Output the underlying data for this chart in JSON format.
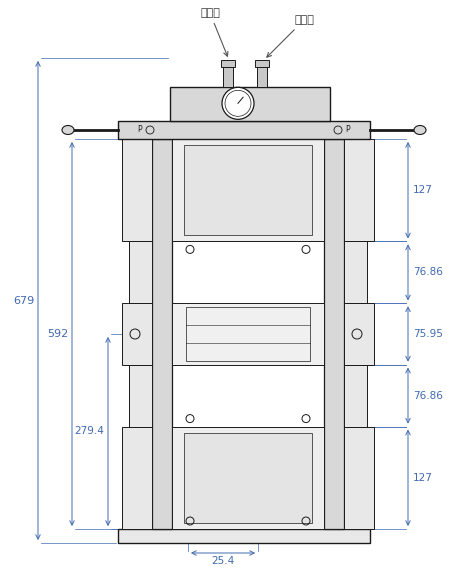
{
  "bg_color": "#ffffff",
  "line_color": "#1a1a1a",
  "dim_color": "#4169B0",
  "label_color": "#333333",
  "fill_light": "#e8e8e8",
  "fill_mid": "#d8d8d8",
  "fill_dark": "#c8c8c8",
  "label_chu": "出油口",
  "label_jin": "进油口",
  "dim_679": "679",
  "dim_592": "592",
  "dim_2794": "279.4",
  "dim_254": "25.4",
  "dim_127t": "127",
  "dim_7686t": "76.86",
  "dim_7595": "75.95",
  "dim_7686b": "76.86",
  "dim_127b": "127"
}
